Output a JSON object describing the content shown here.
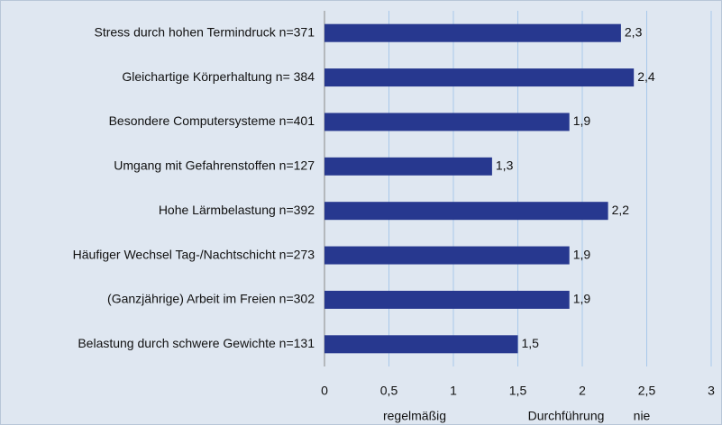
{
  "chart_data": {
    "type": "barh",
    "categories": [
      "Stress durch hohen Termindruck n=371",
      "Gleichartige Körperhaltung n= 384",
      "Besondere Computersysteme n=401",
      "Umgang mit Gefahrenstoffen n=127",
      "Hohe Lärmbelastung n=392",
      "Häufiger Wechsel Tag-/Nachtschicht n=273",
      "(Ganzjährige) Arbeit im Freien n=302",
      "Belastung durch schwere Gewichte n=131"
    ],
    "values": [
      2.3,
      2.4,
      1.9,
      1.3,
      2.2,
      1.9,
      1.9,
      1.5
    ],
    "value_labels": [
      "2,3",
      "2,4",
      "1,9",
      "1,3",
      "2,2",
      "1,9",
      "1,9",
      "1,5"
    ],
    "color": "#27388f",
    "xlim": [
      0,
      3
    ],
    "xticks": [
      0,
      {
        "value": 0.5,
        "label": "0,5"
      },
      1,
      {
        "value": 1.5,
        "label": "1,5"
      },
      2,
      {
        "value": 2.5,
        "label": "2,5"
      },
      3
    ],
    "grid": true,
    "axis_annotations": [
      "regelmäßig",
      "Durchführung",
      "nie"
    ]
  }
}
